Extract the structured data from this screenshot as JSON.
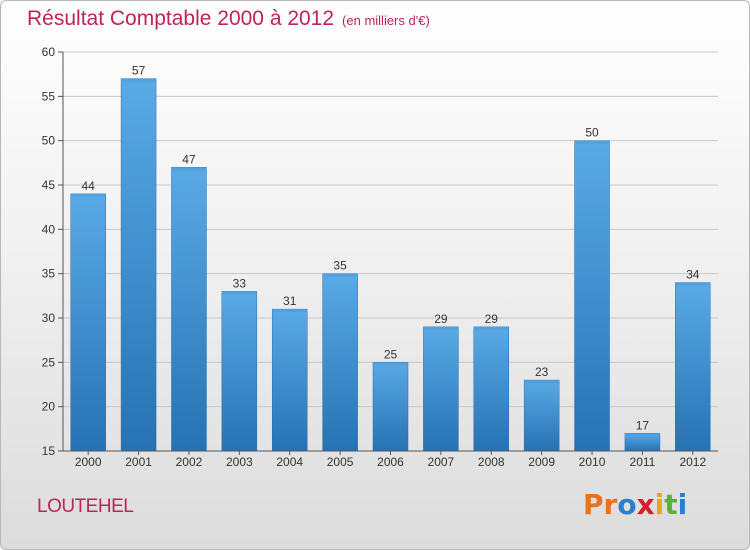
{
  "header": {
    "title": "Résultat Comptable 2000 à 2012",
    "subtitle": "(en milliers d'€)"
  },
  "footer": {
    "commune": "LOUTEHEL",
    "logo_letters": [
      "P",
      "r",
      "o",
      "x",
      "i",
      "t",
      "i"
    ],
    "logo_colors": [
      "#e8731a",
      "#e8731a",
      "#2c7fd0",
      "#d4202a",
      "#e8a51a",
      "#5ab03a",
      "#2c7fd0"
    ]
  },
  "chart_data": {
    "type": "bar",
    "categories": [
      "2000",
      "2001",
      "2002",
      "2003",
      "2004",
      "2005",
      "2006",
      "2007",
      "2008",
      "2009",
      "2010",
      "2011",
      "2012"
    ],
    "values": [
      44,
      57,
      47,
      33,
      31,
      35,
      25,
      29,
      29,
      23,
      50,
      17,
      34
    ],
    "title": "Résultat Comptable 2000 à 2012",
    "xlabel": "",
    "ylabel": "",
    "ylim": [
      15,
      60
    ],
    "yticks": [
      15,
      20,
      25,
      30,
      35,
      40,
      45,
      50,
      55,
      60
    ],
    "grid": true,
    "bar_color": "#3f95d8"
  }
}
